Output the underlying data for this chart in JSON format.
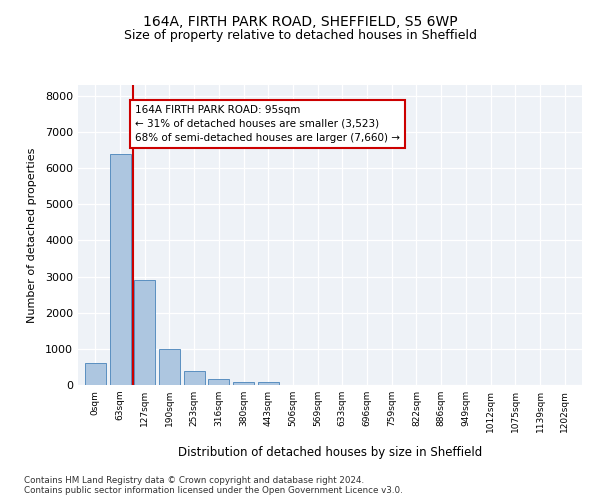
{
  "title1": "164A, FIRTH PARK ROAD, SHEFFIELD, S5 6WP",
  "title2": "Size of property relative to detached houses in Sheffield",
  "xlabel": "Distribution of detached houses by size in Sheffield",
  "ylabel": "Number of detached properties",
  "bar_values": [
    620,
    6400,
    2900,
    1000,
    380,
    160,
    90,
    70,
    0,
    0,
    0,
    0,
    0,
    0,
    0,
    0,
    0,
    0,
    0,
    0
  ],
  "bar_labels": [
    "0sqm",
    "63sqm",
    "127sqm",
    "190sqm",
    "253sqm",
    "316sqm",
    "380sqm",
    "443sqm",
    "506sqm",
    "569sqm",
    "633sqm",
    "696sqm",
    "759sqm",
    "822sqm",
    "886sqm",
    "949sqm",
    "1012sqm",
    "1075sqm",
    "1139sqm",
    "1202sqm"
  ],
  "bar_color": "#adc6e0",
  "bar_edge_color": "#5a8fc0",
  "vline_color": "#cc0000",
  "annotation_text": "164A FIRTH PARK ROAD: 95sqm\n← 31% of detached houses are smaller (3,523)\n68% of semi-detached houses are larger (7,660) →",
  "annotation_box_color": "#cc0000",
  "ylim": [
    0,
    8300
  ],
  "yticks": [
    0,
    1000,
    2000,
    3000,
    4000,
    5000,
    6000,
    7000,
    8000
  ],
  "footer_text": "Contains HM Land Registry data © Crown copyright and database right 2024.\nContains public sector information licensed under the Open Government Licence v3.0.",
  "bg_color": "#eef2f7",
  "n_bars": 20,
  "vline_x": 1.52
}
